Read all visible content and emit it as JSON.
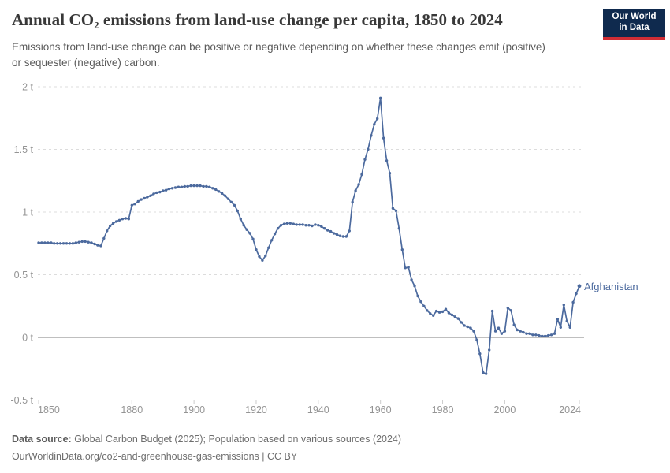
{
  "header": {
    "title": "Annual CO₂ emissions from land-use change per capita, 1850 to 2024",
    "subtitle": "Emissions from land-use change can be positive or negative depending on whether these changes emit (positive) or sequester (negative) carbon.",
    "logo": {
      "line1": "Our World",
      "line2": "in Data"
    }
  },
  "colors": {
    "logo_bg": "#0f2a4e",
    "logo_accent": "#d12d35",
    "series_blue": "#4c6a9e",
    "gridline": "#dcdcdc",
    "zero_line": "#aaaaaa",
    "tick": "#cccccc",
    "axis_text": "#949494"
  },
  "chart_data": {
    "type": "line",
    "title": "Annual CO₂ emissions from land-use change per capita, 1850 to 2024",
    "unit": "t",
    "x_start": 1850,
    "x_end": 2024,
    "x_step": 1,
    "xlim": [
      1850,
      2024
    ],
    "ylim": [
      -0.5,
      2
    ],
    "grid": "horizontal-dashed",
    "zero_line": true,
    "legend_position": "end-of-line-label",
    "xticks": [
      1850,
      1880,
      1900,
      1920,
      1940,
      1960,
      1980,
      2000,
      2024
    ],
    "yticks": [
      {
        "value": 2,
        "label": "2 t"
      },
      {
        "value": 1.5,
        "label": "1.5 t"
      },
      {
        "value": 1,
        "label": "1 t"
      },
      {
        "value": 0.5,
        "label": "0.5 t"
      },
      {
        "value": 0,
        "label": "0 t"
      },
      {
        "value": -0.5,
        "label": "-0.5 t"
      }
    ],
    "series": [
      {
        "name": "Afghanistan",
        "color": "#4c6a9e",
        "values": [
          0.755,
          0.755,
          0.755,
          0.755,
          0.755,
          0.75,
          0.75,
          0.75,
          0.75,
          0.75,
          0.75,
          0.75,
          0.755,
          0.76,
          0.765,
          0.765,
          0.76,
          0.755,
          0.745,
          0.735,
          0.73,
          0.79,
          0.85,
          0.89,
          0.91,
          0.925,
          0.935,
          0.945,
          0.95,
          0.945,
          1.055,
          1.065,
          1.085,
          1.1,
          1.11,
          1.12,
          1.13,
          1.145,
          1.155,
          1.16,
          1.17,
          1.175,
          1.185,
          1.19,
          1.195,
          1.2,
          1.2,
          1.205,
          1.205,
          1.21,
          1.21,
          1.21,
          1.21,
          1.205,
          1.205,
          1.2,
          1.19,
          1.18,
          1.165,
          1.15,
          1.13,
          1.105,
          1.08,
          1.055,
          1.01,
          0.945,
          0.895,
          0.86,
          0.83,
          0.785,
          0.7,
          0.645,
          0.615,
          0.65,
          0.715,
          0.775,
          0.825,
          0.87,
          0.895,
          0.905,
          0.91,
          0.91,
          0.905,
          0.9,
          0.9,
          0.9,
          0.895,
          0.895,
          0.89,
          0.9,
          0.895,
          0.885,
          0.87,
          0.855,
          0.845,
          0.83,
          0.82,
          0.81,
          0.805,
          0.805,
          0.85,
          1.08,
          1.17,
          1.22,
          1.3,
          1.42,
          1.5,
          1.61,
          1.7,
          1.745,
          1.91,
          1.59,
          1.41,
          1.31,
          1.03,
          1.01,
          0.87,
          0.7,
          0.555,
          0.56,
          0.46,
          0.41,
          0.33,
          0.285,
          0.25,
          0.215,
          0.19,
          0.175,
          0.21,
          0.2,
          0.205,
          0.225,
          0.195,
          0.18,
          0.165,
          0.15,
          0.12,
          0.095,
          0.085,
          0.075,
          0.05,
          -0.02,
          -0.13,
          -0.28,
          -0.29,
          -0.1,
          0.21,
          0.05,
          0.075,
          0.03,
          0.05,
          0.235,
          0.215,
          0.1,
          0.06,
          0.05,
          0.04,
          0.03,
          0.03,
          0.02,
          0.02,
          0.015,
          0.01,
          0.01,
          0.015,
          0.02,
          0.03,
          0.145,
          0.08,
          0.26,
          0.13,
          0.08,
          0.28,
          0.35,
          0.41
        ]
      }
    ]
  },
  "footer": {
    "source_label": "Data source:",
    "source_text": " Global Carbon Budget (2025); Population based on various sources (2024)",
    "attribution": "OurWorldinData.org/co2-and-greenhouse-gas-emissions | CC BY"
  }
}
